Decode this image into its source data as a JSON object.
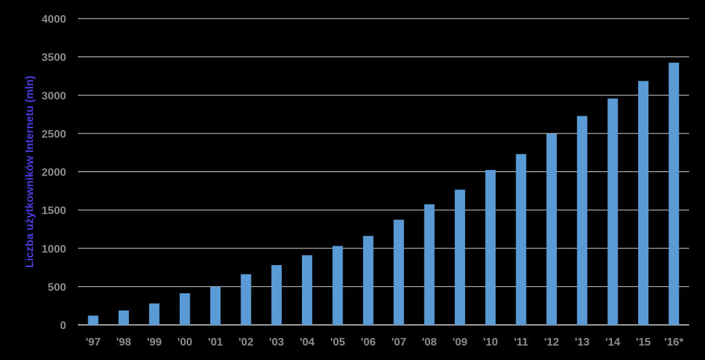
{
  "chart_data": {
    "type": "bar",
    "title": "",
    "xlabel": "",
    "ylabel": "Liczba użytkowników Internetu (mln)",
    "categories": [
      "'97",
      "'98",
      "'99",
      "'00",
      "'01",
      "'02",
      "'03",
      "'04",
      "'05",
      "'06",
      "'07",
      "'08",
      "'09",
      "'10",
      "'11",
      "'12",
      "'13",
      "'14",
      "'15",
      "'16*"
    ],
    "series": [
      {
        "values": [
          121,
          188,
          280,
          413,
          500,
          662,
          781,
          910,
          1030,
          1162,
          1373,
          1575,
          1766,
          2023,
          2231,
          2494,
          2728,
          2956,
          3185,
          3424
        ]
      }
    ],
    "ylim": [
      0,
      4000
    ],
    "yticks": [
      0,
      500,
      1000,
      1500,
      2000,
      2500,
      3000,
      3500,
      4000
    ],
    "grid": true,
    "legend": "none",
    "colors": {
      "background": "#000000",
      "bar": "#5b9bd5",
      "grid": "#d9d9d9",
      "tick_text": "#8c8c8c",
      "ylabel_text": "#4a3ee0"
    }
  }
}
